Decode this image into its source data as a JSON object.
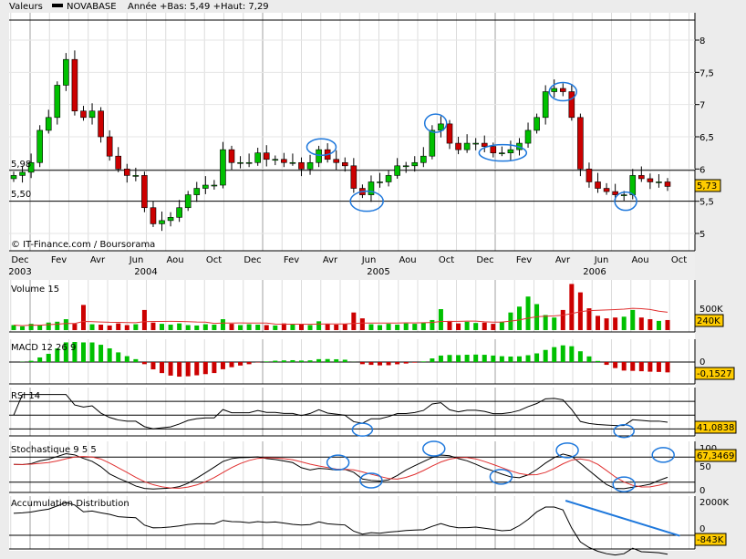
{
  "header": {
    "label": "Valeurs",
    "symbol": "NOVABASE",
    "range_text": "Année +Bas: 5,49 +Haut: 7,29"
  },
  "copyright": "© IT-Finance.com / Boursorama",
  "colors": {
    "up": "#00c000",
    "down": "#cc0000",
    "annotation": "#1e78dc",
    "badge": "#ffcc00",
    "ma": "#e03030"
  },
  "chart_data": {
    "type": "candlestick",
    "title": "NOVABASE",
    "price_axis_ticks": [
      "8",
      "7,5",
      "7",
      "6,5",
      "6",
      "5,5",
      "5"
    ],
    "price_tick_values": [
      8,
      7.5,
      7,
      6.5,
      6,
      5.5,
      5
    ],
    "ylim": [
      4.73,
      8.42
    ],
    "reference_lines": [
      {
        "label": "5,98",
        "value": 5.98
      },
      {
        "label": "5,50",
        "value": 5.5
      }
    ],
    "last_price_label": "5,73",
    "months": [
      "Dec",
      "Fev",
      "Avr",
      "Jun",
      "Aou",
      "Oct",
      "Dec",
      "Fev",
      "Avr",
      "Jun",
      "Aou",
      "Oct",
      "Dec",
      "Fev",
      "Avr",
      "Jun",
      "Aou",
      "Oct"
    ],
    "years": [
      "2003",
      "2004",
      "2005",
      "2006"
    ],
    "closes": [
      5.9,
      5.95,
      6.1,
      6.6,
      6.8,
      7.3,
      7.7,
      6.9,
      6.8,
      6.9,
      6.5,
      6.2,
      6.0,
      5.9,
      5.9,
      5.4,
      5.15,
      5.2,
      5.25,
      5.4,
      5.6,
      5.7,
      5.75,
      5.75,
      6.3,
      6.1,
      6.1,
      6.1,
      6.25,
      6.15,
      6.15,
      6.1,
      6.1,
      6.0,
      6.1,
      6.3,
      6.15,
      6.1,
      6.05,
      5.7,
      5.6,
      5.8,
      5.8,
      5.9,
      6.05,
      6.05,
      6.1,
      6.2,
      6.6,
      6.7,
      6.4,
      6.3,
      6.4,
      6.4,
      6.35,
      6.25,
      6.25,
      6.3,
      6.4,
      6.6,
      6.8,
      7.2,
      7.25,
      7.2,
      6.8,
      6.0,
      5.8,
      5.7,
      5.65,
      5.6,
      5.6,
      5.9,
      5.85,
      5.8,
      5.8,
      5.73
    ],
    "volume_k": [
      120,
      90,
      150,
      110,
      180,
      200,
      260,
      150,
      600,
      140,
      130,
      110,
      160,
      120,
      140,
      480,
      180,
      150,
      130,
      160,
      120,
      110,
      140,
      130,
      260,
      150,
      120,
      140,
      130,
      120,
      110,
      160,
      130,
      150,
      120,
      210,
      140,
      130,
      150,
      420,
      280,
      140,
      120,
      150,
      130,
      160,
      150,
      180,
      240,
      500,
      220,
      160,
      200,
      170,
      180,
      150,
      200,
      420,
      560,
      800,
      620,
      360,
      300,
      480,
      1100,
      900,
      520,
      340,
      280,
      300,
      320,
      480,
      300,
      260,
      220,
      240
    ],
    "annotations_main": [
      {
        "i": 35.3,
        "v": 6.34
      },
      {
        "i": 40.5,
        "v": 5.5
      },
      {
        "i": 48.4,
        "v": 6.71
      },
      {
        "i": 56.1,
        "v": 6.25
      },
      {
        "i": 63,
        "v": 7.2
      },
      {
        "i": 70.2,
        "v": 5.5
      }
    ],
    "annotations_rsi": [
      {
        "i": 40,
        "v": 29
      },
      {
        "i": 70,
        "v": 27
      }
    ],
    "annotations_stoch": [
      {
        "i": 37.2,
        "v": 67
      },
      {
        "i": 41,
        "v": 24
      },
      {
        "i": 48.2,
        "v": 100
      },
      {
        "i": 55.9,
        "v": 33
      },
      {
        "i": 63.5,
        "v": 96
      },
      {
        "i": 70,
        "v": 15
      },
      {
        "i": 74.5,
        "v": 85
      }
    ],
    "accdist_trendline": [
      {
        "i": 63.3,
        "v": 2111
      },
      {
        "i": 76.4,
        "v": -30
      }
    ]
  },
  "panels": {
    "volume": {
      "title": "Volume 15",
      "tick": "500K",
      "value": "240K"
    },
    "macd": {
      "title": "MACD 12 26 9",
      "tick": "0",
      "value": "-0,1527"
    },
    "rsi": {
      "title": "RSI 14",
      "value": "41,0838"
    },
    "stoch": {
      "title": "Stochastique 9 5 5",
      "tick_top": "100",
      "tick_mid": "50",
      "tick_bottom": "0",
      "value": "67,3469"
    },
    "accdist": {
      "title": "Accumulation Distribution",
      "tick_top": "2000K",
      "tick_zero": "0",
      "value": "-843K"
    }
  }
}
